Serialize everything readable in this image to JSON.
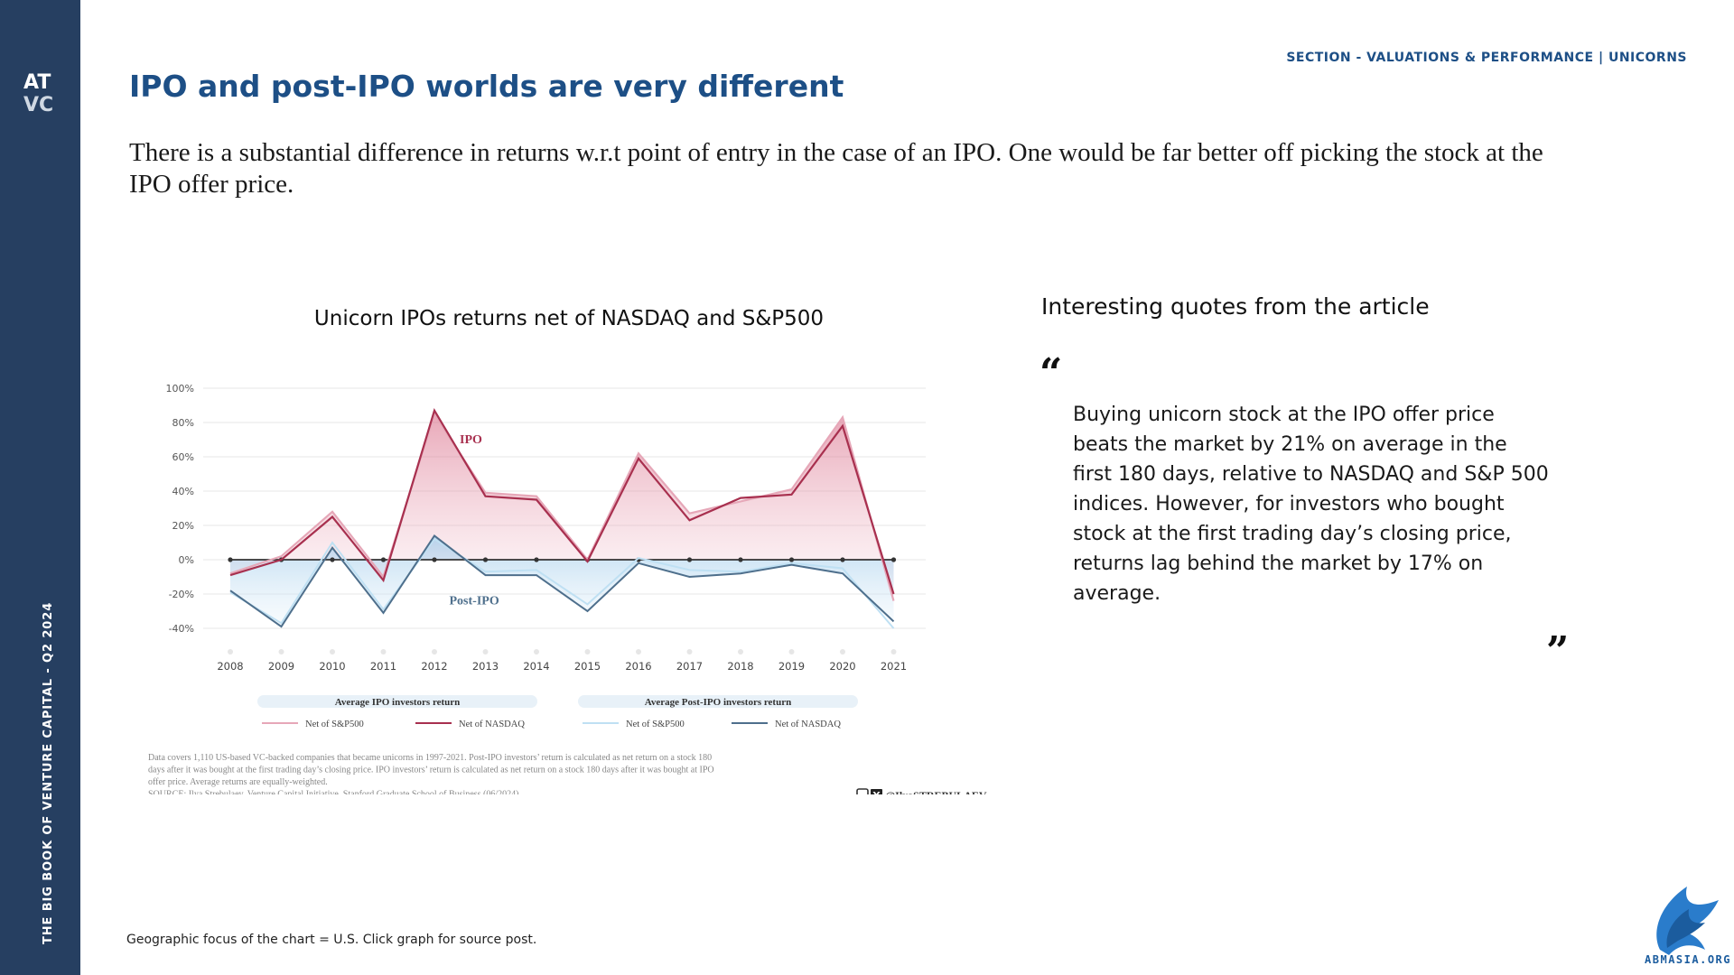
{
  "sidebar": {
    "text": "THE BIG BOOK OF VENTURE CAPITAL - Q2 2024",
    "logo_icon": "atvc-logo"
  },
  "header": {
    "section_label": "SECTION - VALUATIONS & PERFORMANCE | UNICORNS",
    "title": "IPO and post-IPO worlds are very different"
  },
  "intro": "There is a substantial difference in returns w.r.t point of entry in the case of an IPO. One would be far better off picking the stock at the IPO offer price.",
  "quotes": {
    "heading": "Interesting quotes from the article",
    "open_mark": "“",
    "close_mark": "”",
    "text": "Buying unicorn stock at the IPO offer price beats the market by 21% on average in the first 180 days, relative to NASDAQ and S&P 500 indices. However, for investors who bought stock at the first trading day’s closing price, returns lag behind the market by 17% on average."
  },
  "footnote": "Geographic focus of the chart = U.S. Click graph for source post.",
  "brand": {
    "text": "ABMASIA.ORG",
    "icon": "eagle-logo"
  },
  "colors": {
    "sidebar": "#263f61",
    "title": "#1d4f86",
    "ipo_sp": "#e6a7b8",
    "ipo_nasdaq": "#a8304f",
    "post_sp": "#bfe0f3",
    "post_nasdaq": "#4e6f8c"
  },
  "chart_data": {
    "type": "line",
    "title": "Unicorn IPOs returns net of NASDAQ and S&P500",
    "x": [
      2008,
      2009,
      2010,
      2011,
      2012,
      2013,
      2014,
      2015,
      2016,
      2017,
      2018,
      2019,
      2020,
      2021
    ],
    "y_ticks": [
      "100%",
      "80%",
      "60%",
      "40%",
      "20%",
      "0%",
      "-20%",
      "-40%"
    ],
    "ylim": [
      -40,
      100
    ],
    "grid": true,
    "annotations": [
      "IPO",
      "Post-IPO"
    ],
    "legend": {
      "placement": "bottom",
      "groups": [
        "Average IPO investors return",
        "Average Post-IPO investors return"
      ]
    },
    "series": [
      {
        "name": "Net of S&P500",
        "group": "ipo",
        "values": [
          -8,
          2,
          28,
          -10,
          85,
          39,
          37,
          0,
          62,
          27,
          34,
          41,
          83,
          -24
        ]
      },
      {
        "name": "Net of NASDAQ",
        "group": "ipo",
        "values": [
          -9,
          0,
          25,
          -12,
          87,
          37,
          35,
          -1,
          59,
          23,
          36,
          38,
          78,
          -20
        ]
      },
      {
        "name": "Net of S&P500",
        "group": "post",
        "values": [
          -19,
          -37,
          10,
          -29,
          12,
          -7,
          -6,
          -26,
          1,
          -6,
          -7,
          -2,
          -5,
          -40
        ]
      },
      {
        "name": "Net of NASDAQ",
        "group": "post",
        "values": [
          -18,
          -39,
          7,
          -31,
          14,
          -9,
          -9,
          -30,
          -2,
          -10,
          -8,
          -3,
          -8,
          -36
        ]
      }
    ],
    "notes": [
      "Data covers 1,110 US-based VC-backed companies that became unicorns in 1997-2021. Post-IPO investors’ return is calculated as net return on a stock 180",
      "days after it was bought at the first trading day’s closing price. IPO investors’ return is calculated as net return on a stock 180 days after it was bought at IPO",
      "offer price. Average returns are equally-weighted.",
      "SOURCE: Ilya Strebulaev, Venture Capital Initiative, Stanford Graduate School of Business (06/2024)"
    ],
    "handle": "@IlyaSTREBULAEV"
  }
}
